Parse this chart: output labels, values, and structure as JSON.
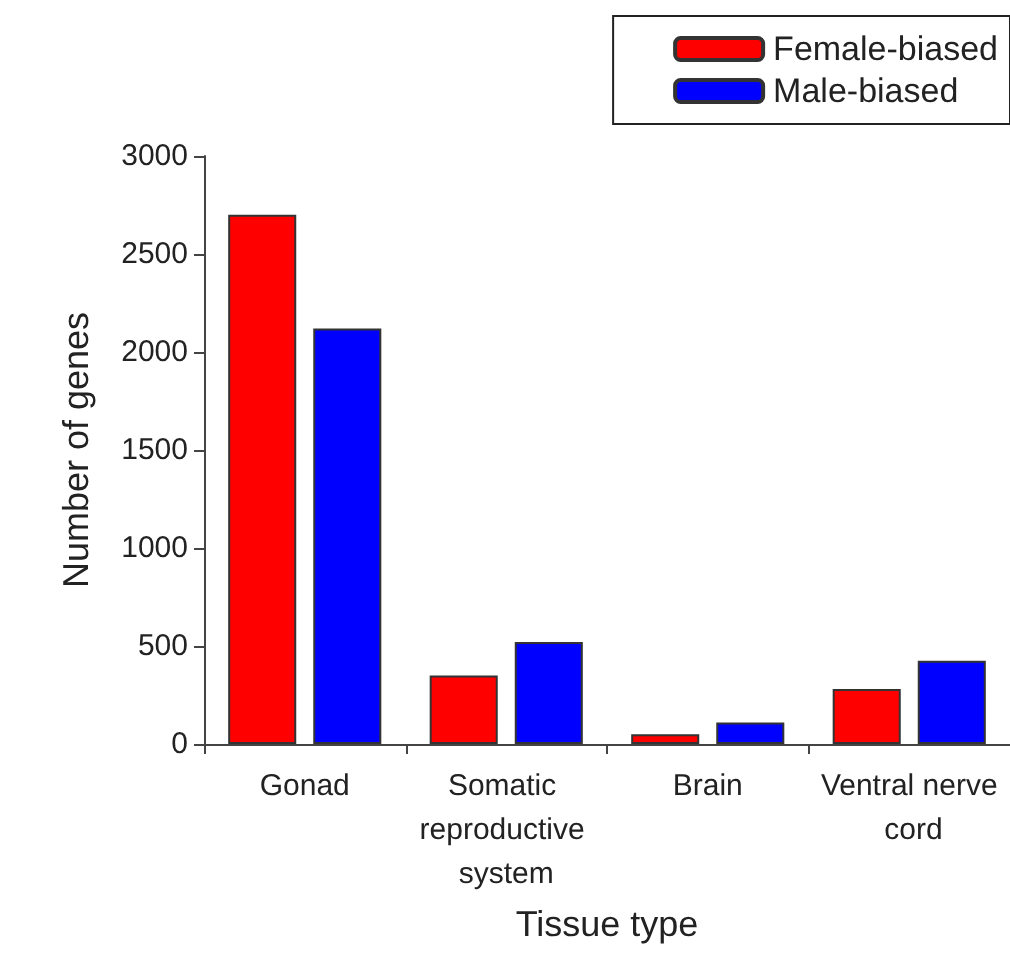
{
  "chart_data": {
    "type": "bar",
    "xlabel": "Tissue type",
    "ylabel": "Number of genes",
    "categories": [
      "Gonad",
      "Somatic reproductive system",
      "Brain",
      "Ventral nerve cord"
    ],
    "series": [
      {
        "name": "Female-biased",
        "color": "#ff0000",
        "values": [
          2700,
          350,
          50,
          280
        ]
      },
      {
        "name": "Male-biased",
        "color": "#0000ff",
        "values": [
          2120,
          520,
          110,
          425
        ]
      }
    ],
    "ylim": [
      0,
      3000
    ],
    "yticks": [
      0,
      500,
      1000,
      1500,
      2000,
      2500,
      3000
    ],
    "grid": false,
    "legend": "top right"
  }
}
